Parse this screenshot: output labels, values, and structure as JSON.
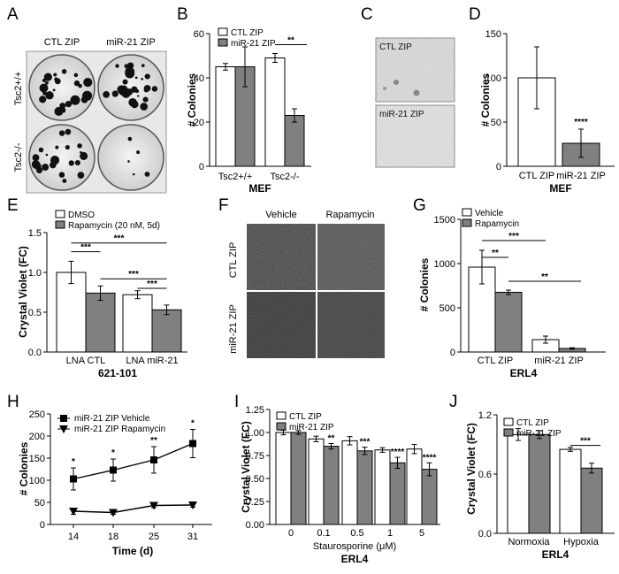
{
  "chart_data": [
    {
      "panel": "A",
      "type": "image",
      "column_labels": [
        "CTL ZIP",
        "miR-21 ZIP"
      ],
      "row_labels": [
        "Tsc2+/+",
        "Tsc2-/-"
      ]
    },
    {
      "panel": "B",
      "type": "bar",
      "categories": [
        "Tsc2+/+",
        "Tsc2-/-"
      ],
      "series": [
        {
          "name": "CTL ZIP",
          "values": [
            45,
            49
          ],
          "errors": [
            1.5,
            2
          ]
        },
        {
          "name": "miR-21 ZIP",
          "values": [
            45,
            23
          ],
          "errors": [
            9,
            3
          ]
        }
      ],
      "ylabel": "# Colonies",
      "xlabel": "MEF",
      "ylim": [
        0,
        60
      ],
      "yticks": [
        0,
        20,
        40,
        60
      ],
      "significance": [
        {
          "label": "**",
          "between": "Tsc2-/- CTL ZIP vs miR-21 ZIP"
        }
      ],
      "legend": "top-left"
    },
    {
      "panel": "C",
      "type": "image",
      "labels": [
        "CTL ZIP",
        "miR-21 ZIP"
      ]
    },
    {
      "panel": "D",
      "type": "bar",
      "categories": [
        "CTL ZIP",
        "miR-21 ZIP"
      ],
      "values": [
        100,
        26
      ],
      "errors": [
        35,
        16
      ],
      "ylabel": "# Colonies",
      "xlabel": "MEF",
      "ylim": [
        0,
        150
      ],
      "yticks": [
        0,
        50,
        100,
        150
      ],
      "significance": [
        {
          "label": "****",
          "on": "miR-21 ZIP"
        }
      ]
    },
    {
      "panel": "E",
      "type": "bar",
      "categories": [
        "LNA CTL",
        "LNA miR-21"
      ],
      "series": [
        {
          "name": "DMSO",
          "values": [
            1.0,
            0.72
          ],
          "errors": [
            0.14,
            0.05
          ]
        },
        {
          "name": "Rapamycin (20 nM, 5d)",
          "values": [
            0.74,
            0.53
          ],
          "errors": [
            0.09,
            0.06
          ]
        }
      ],
      "ylabel": "Crystal Violet (FC)",
      "xlabel": "621-101",
      "ylim": [
        0,
        1.5
      ],
      "yticks": [
        "0.0",
        "0.5",
        "1.0",
        "1.5"
      ],
      "significance": [
        "***",
        "***",
        "***",
        "***"
      ],
      "legend": "top-left"
    },
    {
      "panel": "F",
      "type": "image",
      "column_labels": [
        "Vehicle",
        "Rapamycin"
      ],
      "row_labels": [
        "CTL ZIP",
        "miR-21 ZIP"
      ]
    },
    {
      "panel": "G",
      "type": "bar",
      "categories": [
        "CTL ZIP",
        "miR-21 ZIP"
      ],
      "series": [
        {
          "name": "Vehicle",
          "values": [
            960,
            140
          ],
          "errors": [
            190,
            40
          ]
        },
        {
          "name": "Rapamycin",
          "values": [
            675,
            40
          ],
          "errors": [
            25,
            8
          ]
        }
      ],
      "ylabel": "# Colonies",
      "xlabel": "ERL4",
      "ylim": [
        0,
        1500
      ],
      "yticks": [
        0,
        500,
        1000,
        1500
      ],
      "significance": [
        "**",
        "***",
        "**"
      ],
      "legend": "top-left"
    },
    {
      "panel": "H",
      "type": "line",
      "x": [
        14,
        18,
        25,
        31
      ],
      "series": [
        {
          "name": "miR-21 ZIP Vehicle",
          "marker": "square",
          "values": [
            103,
            123,
            146,
            183
          ],
          "errors": [
            25,
            25,
            30,
            32
          ]
        },
        {
          "name": "miR-21 ZIP Rapamycin",
          "marker": "triangle-down",
          "values": [
            30,
            27,
            43,
            44
          ],
          "errors": [
            7,
            4,
            5,
            5
          ]
        }
      ],
      "xticks": [
        14,
        18,
        25,
        31
      ],
      "ylabel": "# Colonies",
      "xlabel": "Time (d)",
      "ylim": [
        0,
        250
      ],
      "yticks": [
        0,
        50,
        100,
        150,
        200,
        250
      ],
      "significance": [
        "*",
        "*",
        "**",
        "*"
      ],
      "legend": "top-left"
    },
    {
      "panel": "I",
      "type": "bar",
      "categories": [
        "0",
        "0.1",
        "0.5",
        "1",
        "5"
      ],
      "series": [
        {
          "name": "CTL ZIP",
          "values": [
            1.0,
            0.93,
            0.91,
            0.81,
            0.82
          ],
          "errors": [
            0.025,
            0.03,
            0.045,
            0.025,
            0.05
          ]
        },
        {
          "name": "miR-21 ZIP",
          "values": [
            1.0,
            0.85,
            0.8,
            0.67,
            0.6
          ],
          "errors": [
            0.02,
            0.03,
            0.04,
            0.06,
            0.07
          ]
        }
      ],
      "ylabel": "Crystal Violet (FC)",
      "xlabel": "Staurosporine (μM)",
      "subtitle": "ERL4",
      "ylim": [
        0,
        1.25
      ],
      "yticks": [
        "0.00",
        "0.25",
        "0.50",
        "0.75",
        "1.00",
        "1.25"
      ],
      "significance": [
        "",
        "**",
        "***",
        "****",
        "****"
      ],
      "legend": "top-left"
    },
    {
      "panel": "J",
      "type": "bar",
      "categories": [
        "Normoxia",
        "Hypoxia"
      ],
      "series": [
        {
          "name": "CTL ZIP",
          "values": [
            1.0,
            0.85
          ],
          "errors": [
            0.06,
            0.02
          ]
        },
        {
          "name": "miR-21 ZIP",
          "values": [
            1.0,
            0.66
          ],
          "errors": [
            0.04,
            0.05
          ]
        }
      ],
      "ylabel": "Crystal Violet (FC)",
      "xlabel": "ERL4",
      "ylim": [
        0,
        1.2
      ],
      "yticks": [
        "0.0",
        "0.6",
        "1.2"
      ],
      "significance": [
        {
          "label": "***",
          "between": "Hypoxia CTL ZIP vs miR-21 ZIP"
        }
      ],
      "legend": "top-left"
    }
  ]
}
